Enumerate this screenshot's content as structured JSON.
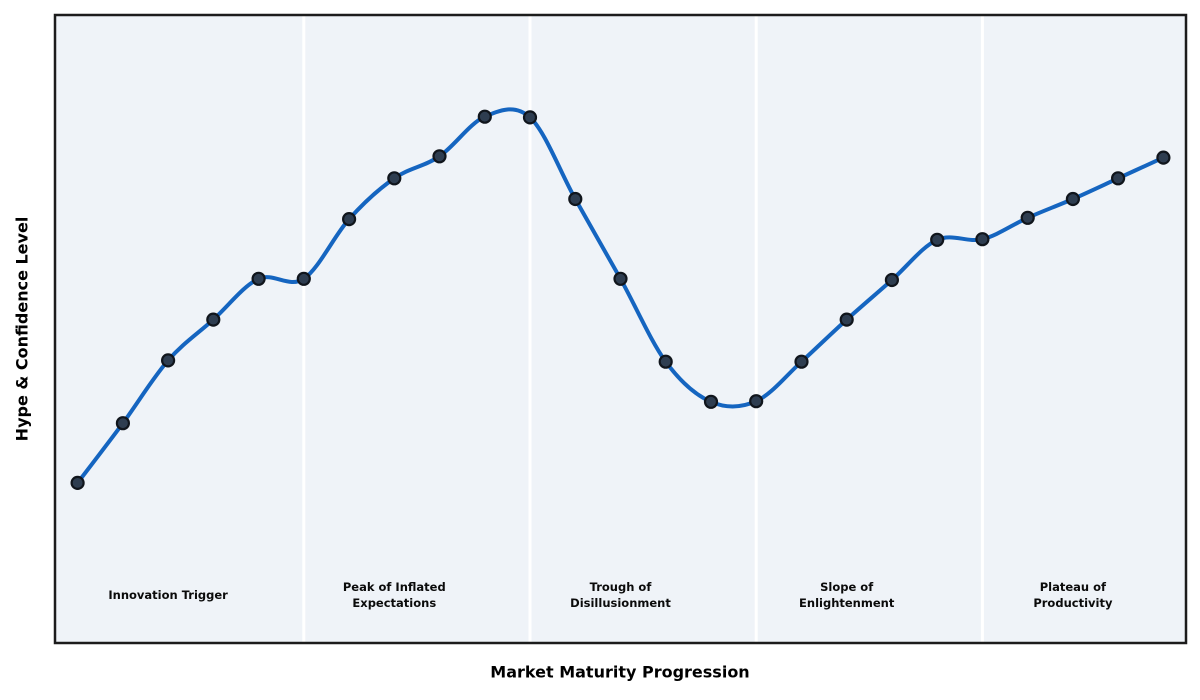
{
  "chart_data": {
    "type": "line",
    "title": "",
    "xlabel": "Market Maturity Progression",
    "ylabel": "Hype & Confidence Level",
    "x": [
      1,
      2,
      3,
      4,
      5,
      6,
      7,
      8,
      9,
      10,
      11,
      12,
      13,
      14,
      15,
      16,
      17,
      18,
      19,
      20,
      21,
      22,
      23,
      24,
      25
    ],
    "y": [
      25.5,
      35,
      45,
      51.5,
      58,
      58,
      67.5,
      74,
      77.5,
      83.8,
      83.7,
      70.7,
      58,
      44.8,
      38.4,
      38.5,
      44.8,
      51.5,
      57.8,
      64.2,
      64.3,
      67.7,
      70.7,
      74,
      77.3
    ],
    "xlim": [
      0.5,
      25.5
    ],
    "ylim": [
      0,
      100
    ],
    "grid": false,
    "legend": "none",
    "ticks": "none",
    "curve_style": "smooth-spline-through-points",
    "phases": [
      {
        "label": "Innovation Trigger",
        "x_start": 0.5,
        "x_end": 6,
        "label_x": 3
      },
      {
        "label": "Peak of Inflated\nExpectations",
        "x_start": 6,
        "x_end": 11,
        "label_x": 8
      },
      {
        "label": "Trough of\nDisillusionment",
        "x_start": 11,
        "x_end": 16,
        "label_x": 13
      },
      {
        "label": "Slope of\nEnlightenment",
        "x_start": 16,
        "x_end": 21,
        "label_x": 18
      },
      {
        "label": "Plateau of\nProductivity",
        "x_start": 21,
        "x_end": 25.5,
        "label_x": 23
      }
    ],
    "colors": {
      "line": "#1565c0",
      "marker_fill": "#2e3d50",
      "marker_edge": "#10151c",
      "plot_background": "#eff3f8",
      "phase_separator": "#ffffff",
      "plot_border": "#1c1c1c",
      "figure_background": "#ffffff",
      "label_text": "#000000"
    }
  }
}
